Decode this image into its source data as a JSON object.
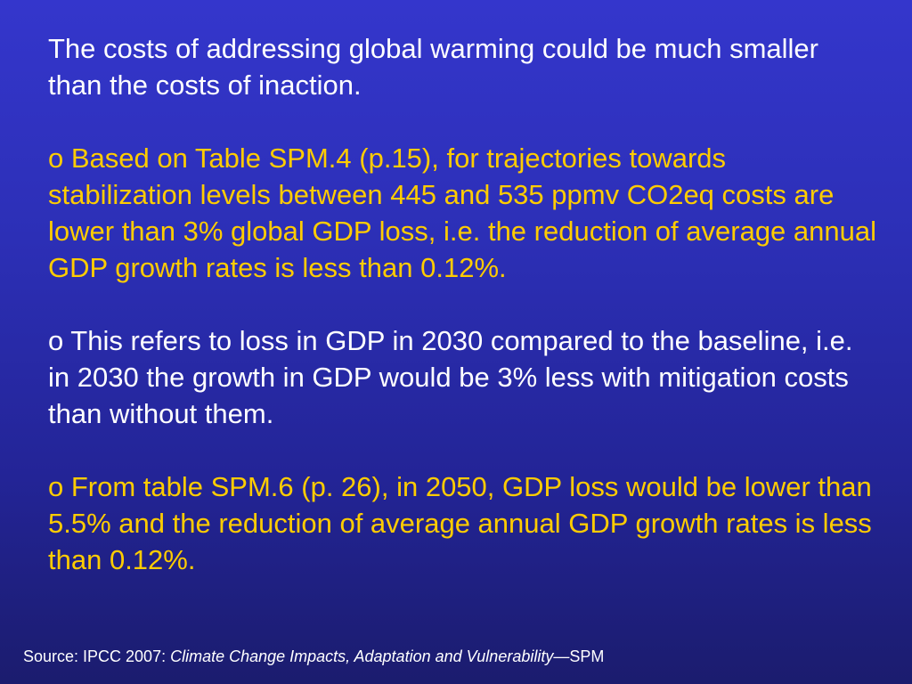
{
  "colors": {
    "background_top": "#3436cc",
    "background_bottom": "#1b1c6e",
    "text_white": "#ffffff",
    "text_yellow": "#ffcc00"
  },
  "slide": {
    "paragraphs": [
      {
        "text": "The costs of addressing global warming could be much smaller than the costs of inaction.",
        "color": "white"
      },
      {
        "text": "o Based on Table SPM.4 (p.15), for trajectories towards stabilization levels between 445 and 535 ppmv CO2eq costs are lower than 3% global GDP loss, i.e. the reduction of average annual GDP growth rates is less than 0.12%.",
        "color": "yellow"
      },
      {
        "text": "o This refers to loss in GDP in 2030 compared to the baseline, i.e. in 2030 the growth in GDP would be 3% less with mitigation costs than without them.",
        "color": "white"
      },
      {
        "text": "o From table SPM.6 (p. 26), in 2050, GDP loss would be lower than 5.5% and the reduction of average annual GDP growth rates is less than 0.12%.",
        "color": "yellow"
      }
    ],
    "source": {
      "prefix": "Source: IPCC 2007: ",
      "title": "Climate Change Impacts, Adaptation and Vulnerability",
      "suffix": "—SPM"
    }
  }
}
